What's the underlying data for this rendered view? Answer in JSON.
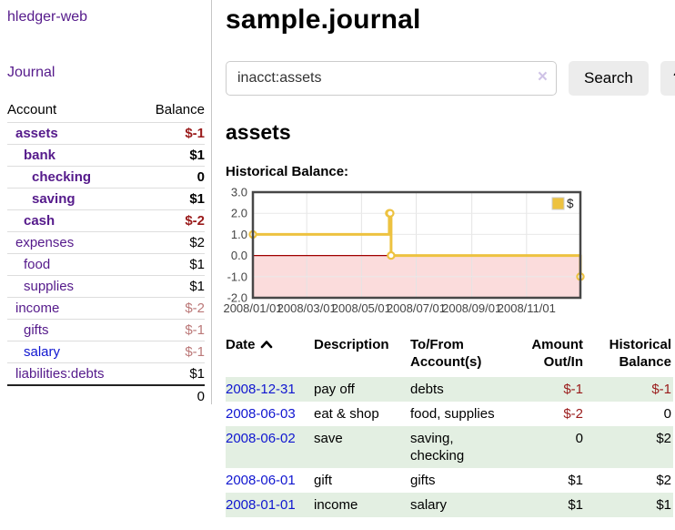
{
  "colors": {
    "link_purple": "#551a8b",
    "link_blue": "#1016d0",
    "negative_strong": "#9a1b1b",
    "negative_soft": "#bb7878",
    "row_green": "#e3efe2",
    "button_gray": "#ececec",
    "clear_icon_lavender": "#cfc3e6",
    "chart_series_gold": "#edc240",
    "chart_negative_region": "#fbdcdc",
    "chart_zero_line": "#a00000"
  },
  "sidebar": {
    "brand": "hledger-web",
    "nav_journal": "Journal",
    "accounts": {
      "header_account": "Account",
      "header_balance": "Balance",
      "rows": [
        {
          "account": "assets",
          "balance": "$-1",
          "indent": 1,
          "bold": true,
          "link": "purple",
          "bal": "neg"
        },
        {
          "account": "bank",
          "balance": "$1",
          "indent": 2,
          "bold": true,
          "link": "purple",
          "bal": "pos"
        },
        {
          "account": "checking",
          "balance": "0",
          "indent": 3,
          "bold": true,
          "link": "purple",
          "bal": "pos"
        },
        {
          "account": "saving",
          "balance": "$1",
          "indent": 3,
          "bold": true,
          "link": "purple",
          "bal": "pos"
        },
        {
          "account": "cash",
          "balance": "$-2",
          "indent": 2,
          "bold": true,
          "link": "purple",
          "bal": "neg"
        },
        {
          "account": "expenses",
          "balance": "$2",
          "indent": 1,
          "bold": false,
          "link": "purple",
          "bal": "pos"
        },
        {
          "account": "food",
          "balance": "$1",
          "indent": 2,
          "bold": false,
          "link": "purple",
          "bal": "pos"
        },
        {
          "account": "supplies",
          "balance": "$1",
          "indent": 2,
          "bold": false,
          "link": "purple",
          "bal": "pos"
        },
        {
          "account": "income",
          "balance": "$-2",
          "indent": 1,
          "bold": false,
          "link": "purple",
          "bal": "negsoft"
        },
        {
          "account": "gifts",
          "balance": "$-1",
          "indent": 2,
          "bold": false,
          "link": "purple",
          "bal": "negsoft"
        },
        {
          "account": "salary",
          "balance": "$-1",
          "indent": 2,
          "bold": false,
          "link": "blue",
          "bal": "negsoft"
        },
        {
          "account": "liabilities:debts",
          "balance": "$1",
          "indent": 1,
          "bold": false,
          "link": "purple",
          "bal": "pos"
        }
      ],
      "total": "0"
    }
  },
  "header": {
    "title": "sample.journal"
  },
  "search": {
    "value": "inacct:assets",
    "clear_icon": "×",
    "button_label": "Search",
    "help_label": "?"
  },
  "account_page": {
    "heading": "assets",
    "chart_title": "Historical Balance:"
  },
  "chart_data": {
    "type": "line",
    "step": true,
    "title": "Historical Balance",
    "legend": "$",
    "legend_position": "top-right",
    "grid": true,
    "ylim": [
      -2,
      3
    ],
    "x_range": [
      "2008-01-01",
      "2008-12-31"
    ],
    "y_ticks": [
      3.0,
      2.0,
      1.0,
      0.0,
      -1.0,
      -2.0
    ],
    "x_ticks": [
      {
        "date": "2008-01-01",
        "label": "2008/01/01"
      },
      {
        "date": "2008-03-01",
        "label": "2008/03/01"
      },
      {
        "date": "2008-05-01",
        "label": "2008/05/01"
      },
      {
        "date": "2008-07-01",
        "label": "2008/07/01"
      },
      {
        "date": "2008-09-01",
        "label": "2008/09/01"
      },
      {
        "date": "2008-11-01",
        "label": "2008/11/01"
      }
    ],
    "series": [
      {
        "name": "$",
        "color": "#edc240",
        "points": [
          [
            "2008-01-01",
            1
          ],
          [
            "2008-06-01",
            2
          ],
          [
            "2008-06-02",
            2
          ],
          [
            "2008-06-03",
            0
          ],
          [
            "2008-12-31",
            -1
          ]
        ]
      }
    ],
    "negative_region_color": "#fbdcdc",
    "zero_line_color": "#a00000"
  },
  "register": {
    "headers": [
      "Date",
      "Description",
      "To/From Account(s)",
      "Amount Out/In",
      "Historical Balance"
    ],
    "sort": "ascending",
    "rows": [
      {
        "date": "2008-12-31",
        "description": "pay off",
        "accounts": "debts",
        "amount": "$-1",
        "amount_neg": true,
        "balance": "$-1",
        "balance_neg": true
      },
      {
        "date": "2008-06-03",
        "description": "eat & shop",
        "accounts": "food, supplies",
        "amount": "$-2",
        "amount_neg": true,
        "balance": "0",
        "balance_neg": false
      },
      {
        "date": "2008-06-02",
        "description": "save",
        "accounts": "saving, checking",
        "amount": "0",
        "amount_neg": false,
        "balance": "$2",
        "balance_neg": false
      },
      {
        "date": "2008-06-01",
        "description": "gift",
        "accounts": "gifts",
        "amount": "$1",
        "amount_neg": false,
        "balance": "$2",
        "balance_neg": false
      },
      {
        "date": "2008-01-01",
        "description": "income",
        "accounts": "salary",
        "amount": "$1",
        "amount_neg": false,
        "balance": "$1",
        "balance_neg": false
      }
    ]
  }
}
